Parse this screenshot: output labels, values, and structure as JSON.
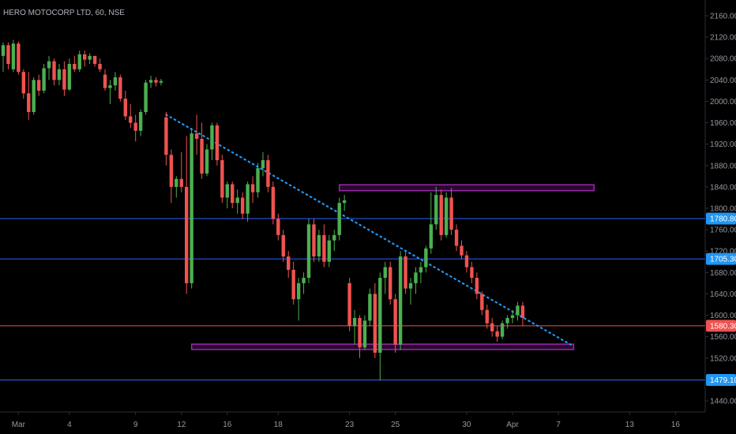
{
  "colors": {
    "background": "#000000",
    "bull": "#4caf50",
    "bear": "#ef5350",
    "hline_blue": "#2962ff",
    "hline_red": "#ef5350",
    "badge_blue": "#2196f3",
    "badge_red": "#ef5350",
    "zone": "#9c27b0",
    "trendline": "#2196f3"
  },
  "chart_data": {
    "type": "candlestick",
    "title": "HERO MOTOCORP LTD, 60, NSE",
    "ylim": [
      1420,
      2170
    ],
    "y_ticks": [
      2160,
      2120,
      2080,
      2040,
      2000,
      1960,
      1920,
      1880,
      1840,
      1800,
      1760,
      1720,
      1680,
      1640,
      1600,
      1560,
      1520,
      1440
    ],
    "y_tick_labels": [
      "2160.00",
      "2120.00",
      "2080.00",
      "2040.00",
      "2000.00",
      "1960.00",
      "1920.00",
      "1880.00",
      "1840.00",
      "1800.00",
      "1760.00",
      "1720.00",
      "1680.00",
      "1640.00",
      "1600.00",
      "1560.00",
      "1520.00",
      "1440.00"
    ],
    "bar_range": [
      0,
      116
    ],
    "x_ticks": [
      {
        "label": "Mar",
        "bar": 3
      },
      {
        "label": "4",
        "bar": 13
      },
      {
        "label": "9",
        "bar": 26
      },
      {
        "label": "12",
        "bar": 35
      },
      {
        "label": "16",
        "bar": 44
      },
      {
        "label": "18",
        "bar": 54
      },
      {
        "label": "23",
        "bar": 68
      },
      {
        "label": "25",
        "bar": 77
      },
      {
        "label": "30",
        "bar": 91
      },
      {
        "label": "Apr",
        "bar": 100
      },
      {
        "label": "7",
        "bar": 109
      },
      {
        "label": "13",
        "bar": 123
      },
      {
        "label": "16",
        "bar": 132
      }
    ],
    "candles": [
      [
        2085,
        2110,
        2055,
        2105
      ],
      [
        2105,
        2110,
        2060,
        2070
      ],
      [
        2060,
        2115,
        2055,
        2108
      ],
      [
        2108,
        2112,
        2050,
        2055
      ],
      [
        2055,
        2060,
        2005,
        2015
      ],
      [
        2015,
        2055,
        1965,
        1980
      ],
      [
        1980,
        2045,
        1975,
        2040
      ],
      [
        2040,
        2050,
        2010,
        2020
      ],
      [
        2020,
        2070,
        2015,
        2062
      ],
      [
        2062,
        2085,
        2040,
        2075
      ],
      [
        2075,
        2080,
        2030,
        2040
      ],
      [
        2040,
        2070,
        2030,
        2060
      ],
      [
        2060,
        2075,
        2010,
        2022
      ],
      [
        2022,
        2080,
        2020,
        2070
      ],
      [
        2070,
        2085,
        2055,
        2060
      ],
      [
        2060,
        2095,
        2055,
        2088
      ],
      [
        2088,
        2095,
        2065,
        2078
      ],
      [
        2078,
        2090,
        2070,
        2085
      ],
      [
        2085,
        2085,
        2065,
        2070
      ],
      [
        2070,
        2080,
        2055,
        2060
      ],
      [
        2050,
        2060,
        2020,
        2025
      ],
      [
        2025,
        2040,
        1995,
        2030
      ],
      [
        2030,
        2055,
        2020,
        2045
      ],
      [
        2045,
        2050,
        2000,
        2005
      ],
      [
        2005,
        2020,
        1965,
        1972
      ],
      [
        1972,
        1995,
        1950,
        1960
      ],
      [
        1960,
        1975,
        1925,
        1945
      ],
      [
        1945,
        1985,
        1935,
        1980
      ],
      [
        1980,
        2040,
        1975,
        2035
      ],
      [
        2035,
        2048,
        2025,
        2040
      ],
      [
        2040,
        2045,
        2028,
        2035
      ],
      [
        2035,
        2042,
        2030,
        2038
      ],
      [
        1970,
        1980,
        1880,
        1900
      ],
      [
        1900,
        1910,
        1810,
        1840
      ],
      [
        1840,
        1860,
        1820,
        1855
      ],
      [
        1855,
        1905,
        1830,
        1840
      ],
      [
        1840,
        1935,
        1640,
        1660
      ],
      [
        1660,
        1950,
        1650,
        1940
      ],
      [
        1940,
        1975,
        1900,
        1930
      ],
      [
        1930,
        1960,
        1855,
        1865
      ],
      [
        1865,
        1920,
        1860,
        1910
      ],
      [
        1910,
        1960,
        1890,
        1955
      ],
      [
        1955,
        1960,
        1880,
        1890
      ],
      [
        1890,
        1900,
        1810,
        1820
      ],
      [
        1820,
        1850,
        1800,
        1845
      ],
      [
        1845,
        1850,
        1800,
        1810
      ],
      [
        1810,
        1835,
        1790,
        1820
      ],
      [
        1820,
        1830,
        1780,
        1790
      ],
      [
        1790,
        1850,
        1775,
        1845
      ],
      [
        1845,
        1860,
        1810,
        1830
      ],
      [
        1830,
        1885,
        1820,
        1875
      ],
      [
        1875,
        1905,
        1860,
        1890
      ],
      [
        1890,
        1900,
        1830,
        1840
      ],
      [
        1840,
        1850,
        1770,
        1780
      ],
      [
        1780,
        1790,
        1740,
        1750
      ],
      [
        1750,
        1760,
        1700,
        1710
      ],
      [
        1710,
        1720,
        1670,
        1685
      ],
      [
        1685,
        1700,
        1620,
        1630
      ],
      [
        1630,
        1670,
        1590,
        1660
      ],
      [
        1660,
        1680,
        1640,
        1670
      ],
      [
        1670,
        1780,
        1660,
        1770
      ],
      [
        1770,
        1780,
        1700,
        1710
      ],
      [
        1710,
        1760,
        1700,
        1750
      ],
      [
        1750,
        1770,
        1690,
        1700
      ],
      [
        1700,
        1750,
        1690,
        1740
      ],
      [
        1740,
        1760,
        1720,
        1750
      ],
      [
        1750,
        1820,
        1740,
        1810
      ],
      [
        1810,
        1825,
        1795,
        1815
      ],
      [
        1660,
        1670,
        1570,
        1580
      ],
      [
        1580,
        1610,
        1545,
        1595
      ],
      [
        1595,
        1600,
        1520,
        1540
      ],
      [
        1540,
        1600,
        1535,
        1590
      ],
      [
        1590,
        1650,
        1580,
        1640
      ],
      [
        1640,
        1660,
        1520,
        1530
      ],
      [
        1530,
        1680,
        1478,
        1670
      ],
      [
        1670,
        1700,
        1640,
        1690
      ],
      [
        1690,
        1700,
        1620,
        1630
      ],
      [
        1630,
        1640,
        1530,
        1545
      ],
      [
        1545,
        1720,
        1535,
        1710
      ],
      [
        1710,
        1720,
        1640,
        1650
      ],
      [
        1650,
        1670,
        1620,
        1660
      ],
      [
        1660,
        1690,
        1640,
        1680
      ],
      [
        1680,
        1700,
        1660,
        1690
      ],
      [
        1690,
        1730,
        1680,
        1725
      ],
      [
        1725,
        1830,
        1715,
        1770
      ],
      [
        1770,
        1840,
        1760,
        1825
      ],
      [
        1825,
        1835,
        1740,
        1750
      ],
      [
        1750,
        1830,
        1745,
        1820
      ],
      [
        1820,
        1838,
        1750,
        1760
      ],
      [
        1760,
        1770,
        1720,
        1730
      ],
      [
        1730,
        1740,
        1705,
        1712
      ],
      [
        1712,
        1720,
        1680,
        1690
      ],
      [
        1690,
        1700,
        1660,
        1670
      ],
      [
        1670,
        1680,
        1630,
        1640
      ],
      [
        1640,
        1645,
        1600,
        1610
      ],
      [
        1610,
        1620,
        1575,
        1585
      ],
      [
        1585,
        1595,
        1560,
        1570
      ],
      [
        1570,
        1580,
        1550,
        1560
      ],
      [
        1560,
        1590,
        1555,
        1585
      ],
      [
        1585,
        1600,
        1575,
        1595
      ],
      [
        1595,
        1610,
        1585,
        1600
      ],
      [
        1600,
        1625,
        1590,
        1618
      ],
      [
        1618,
        1625,
        1580,
        1595
      ]
    ],
    "horizontal_lines": [
      {
        "price": 1780.8,
        "label": "1780.80",
        "color": "blue"
      },
      {
        "price": 1705.3,
        "label": "1705.30",
        "color": "blue"
      },
      {
        "price": 1580.3,
        "label": "1580.30",
        "color": "red"
      },
      {
        "price": 1479.1,
        "label": "1479.10",
        "color": "blue"
      }
    ],
    "zones": [
      {
        "bar_start": 66,
        "bar_end": 116,
        "price_low": 1833,
        "price_high": 1844
      },
      {
        "bar_start": 37,
        "bar_end": 112,
        "price_low": 1536,
        "price_high": 1546
      }
    ],
    "trendline": {
      "bar_start": 32,
      "price_start": 1975,
      "bar_end": 112,
      "price_end": 1542
    }
  }
}
